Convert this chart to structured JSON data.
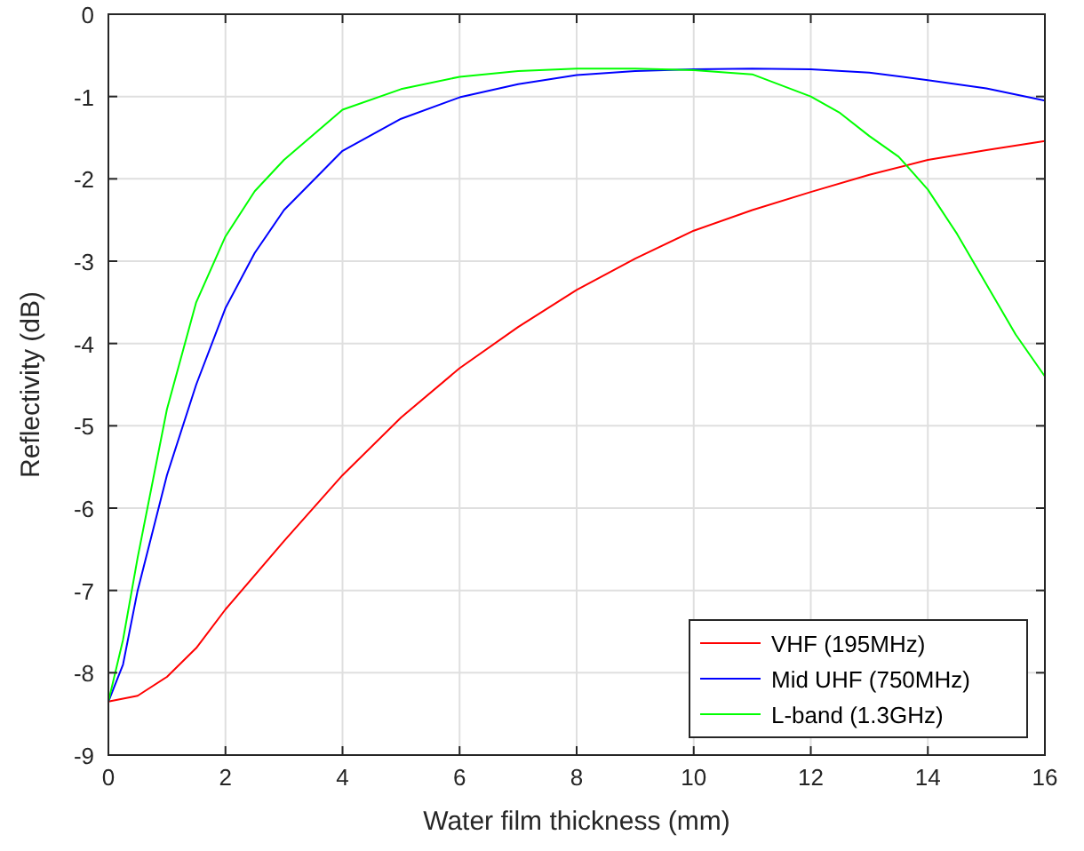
{
  "chart_data": {
    "type": "line",
    "xlabel": "Water film thickness (mm)",
    "ylabel": "Reflectivity (dB)",
    "xlim": [
      0,
      16
    ],
    "ylim": [
      -9,
      0
    ],
    "xticks": [
      0,
      2,
      4,
      6,
      8,
      10,
      12,
      14,
      16
    ],
    "yticks": [
      -9,
      -8,
      -7,
      -6,
      -5,
      -4,
      -3,
      -2,
      -1,
      0
    ],
    "grid": true,
    "legend": "bottom right",
    "marker": "none",
    "line_style": "solid",
    "series": [
      {
        "name": "VHF (195MHz)",
        "color": "#ff0000",
        "x": [
          0,
          0.5,
          1,
          1.5,
          2,
          3,
          4,
          5,
          6,
          7,
          8,
          9,
          10,
          11,
          12,
          13,
          14,
          15,
          16
        ],
        "values": [
          -8.35,
          -8.28,
          -8.05,
          -7.7,
          -7.23,
          -6.4,
          -5.6,
          -4.9,
          -4.3,
          -3.8,
          -3.35,
          -2.97,
          -2.63,
          -2.38,
          -2.16,
          -1.95,
          -1.77,
          -1.65,
          -1.54
        ]
      },
      {
        "name": "Mid UHF (750MHz)",
        "color": "#0000ff",
        "x": [
          0,
          0.25,
          0.5,
          1,
          1.5,
          2,
          2.5,
          3,
          4,
          5,
          6,
          7,
          8,
          9,
          10,
          11,
          12,
          13,
          14,
          15,
          16
        ],
        "values": [
          -8.35,
          -7.9,
          -7.0,
          -5.6,
          -4.5,
          -3.57,
          -2.9,
          -2.38,
          -1.66,
          -1.27,
          -1.01,
          -0.85,
          -0.74,
          -0.69,
          -0.67,
          -0.66,
          -0.67,
          -0.71,
          -0.8,
          -0.9,
          -1.05
        ]
      },
      {
        "name": "L-band (1.3GHz)",
        "color": "#00ff00",
        "x": [
          0,
          0.25,
          0.5,
          1,
          1.5,
          2,
          2.5,
          3,
          4,
          5,
          6,
          7,
          8,
          9,
          10,
          11,
          12,
          12.5,
          13,
          13.5,
          14,
          14.5,
          15,
          15.5,
          16
        ],
        "values": [
          -8.35,
          -7.6,
          -6.6,
          -4.8,
          -3.5,
          -2.7,
          -2.15,
          -1.77,
          -1.16,
          -0.91,
          -0.76,
          -0.69,
          -0.66,
          -0.66,
          -0.68,
          -0.73,
          -1.0,
          -1.2,
          -1.48,
          -1.73,
          -2.13,
          -2.67,
          -3.28,
          -3.89,
          -4.4
        ]
      }
    ]
  }
}
